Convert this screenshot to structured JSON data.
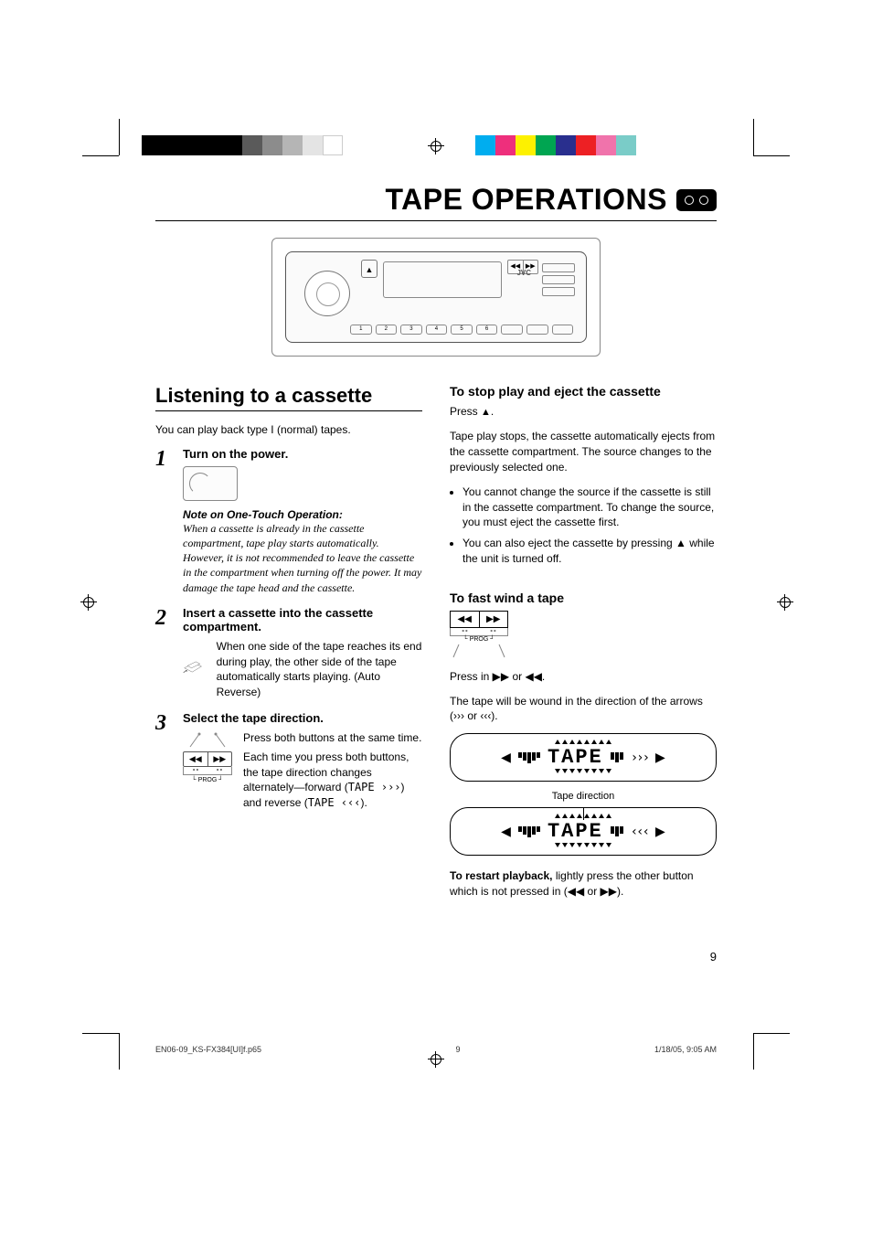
{
  "colorBars": {
    "left": [
      "#000000",
      "#000000",
      "#000000",
      "#000000",
      "#000000",
      "#5a5a5a",
      "#8c8c8c",
      "#b5b5b5",
      "#e4e4e4",
      "#ffffff"
    ],
    "right": [
      "#00adef",
      "#ee2f7c",
      "#fdf100",
      "#00a551",
      "#292f8e",
      "#ed2024",
      "#f073ab",
      "#7accc8"
    ]
  },
  "title": "TAPE OPERATIONS",
  "leftCol": {
    "heading": "Listening to a cassette",
    "intro": "You can play back type I (normal) tapes.",
    "steps": [
      {
        "num": "1",
        "title": "Turn on the power.",
        "noteTitle": "Note on One-Touch Operation:",
        "noteBody": "When a cassette is already in the cassette compartment, tape play starts automatically. However, it is not recommended to leave the cassette in the compartment when turning off the power. It may damage the tape head and the cassette."
      },
      {
        "num": "2",
        "title": "Insert a cassette into the cassette compartment.",
        "body": "When one side of the tape reaches its end during play, the other side of the tape automatically starts playing. (Auto Reverse)"
      },
      {
        "num": "3",
        "title": "Select the tape direction.",
        "body1": "Press both buttons at the same time.",
        "body2a": "Each time you press both buttons, the tape direction changes alternately—forward (",
        "body2b": ") and reverse (",
        "body2c": ").",
        "tapeFwd": "TAPE  ›››",
        "tapeRev": "TAPE  ‹‹‹"
      }
    ]
  },
  "rightCol": {
    "stop": {
      "heading": "To stop play and eject the cassette",
      "press": "Press ",
      "body": "Tape play stops, the cassette automatically ejects from the cassette compartment. The source changes to the previously selected one.",
      "bullets": [
        "You cannot change the source if the cassette is still in the cassette compartment.\nTo change the source, you must eject the cassette first.",
        "You can also eject the cassette by pressing ▲ while the unit is turned off."
      ]
    },
    "fastwind": {
      "heading": "To fast wind a tape",
      "press": "Press in ▶▶ or ◀◀.",
      "body": "The tape will be wound in the direction of the arrows (››› or ‹‹‹).",
      "tapeDir": "Tape direction",
      "restart1": "To restart playback, ",
      "restart2": "lightly press the other button which is not pressed in (◀◀ or ▶▶)."
    },
    "lcd1": "TAPE",
    "lcd1arrows": "›››",
    "lcd2": "TAPE",
    "lcd2arrows": "‹‹‹"
  },
  "progLabel": "PROG",
  "jvc": "JVC",
  "pageNum": "9",
  "footer": {
    "file": "EN06-09_KS-FX384[UI]f.p65",
    "page": "9",
    "date": "1/18/05, 9:05 AM"
  }
}
